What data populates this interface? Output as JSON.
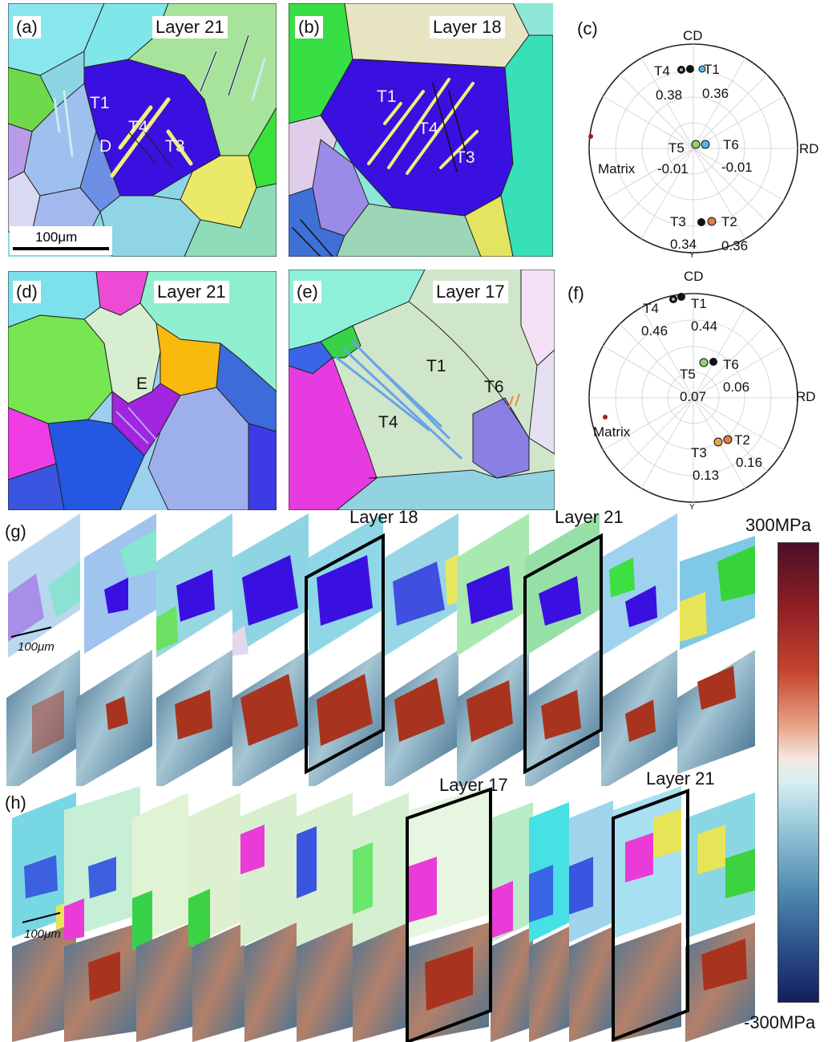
{
  "panels": {
    "a": {
      "tag": "(a)",
      "layer": "Layer 21",
      "labels": [
        "T1",
        "T4",
        "T3",
        "D"
      ],
      "scalebar": "100μm"
    },
    "b": {
      "tag": "(b)",
      "layer": "Layer 18",
      "labels": [
        "T1",
        "T4",
        "T3"
      ]
    },
    "c": {
      "tag": "(c)",
      "cd": "CD",
      "rd": "RD",
      "y": "Y",
      "matrix": "Matrix",
      "points": [
        {
          "name": "T4",
          "value": "0.38"
        },
        {
          "name": "T1",
          "value": "0.36"
        },
        {
          "name": "T5",
          "value": "-0.01"
        },
        {
          "name": "T6",
          "value": "-0.01"
        },
        {
          "name": "T3",
          "value": "0.34"
        },
        {
          "name": "T2",
          "value": "0.36"
        }
      ]
    },
    "d": {
      "tag": "(d)",
      "layer": "Layer 21",
      "labels": [
        "E"
      ]
    },
    "e": {
      "tag": "(e)",
      "layer": "Layer 17",
      "labels": [
        "T1",
        "T6",
        "T4"
      ]
    },
    "f": {
      "tag": "(f)",
      "cd": "CD",
      "rd": "RD",
      "y": "Y",
      "matrix": "Matrix",
      "points": [
        {
          "name": "T4",
          "value": "0.46"
        },
        {
          "name": "T1",
          "value": "0.44"
        },
        {
          "name": "T5",
          "value": "0.07"
        },
        {
          "name": "T6",
          "value": "0.06"
        },
        {
          "name": "T3",
          "value": "0.13"
        },
        {
          "name": "T2",
          "value": "0.16"
        }
      ]
    },
    "g": {
      "tag": "(g)",
      "highlight_1": "Layer 18",
      "highlight_2": "Layer 21",
      "scalebar": "100μm"
    },
    "h": {
      "tag": "(h)",
      "highlight_1": "Layer 17",
      "highlight_2": "Layer 21",
      "scalebar": "100μm"
    }
  },
  "colorbar": {
    "max": "300MPa",
    "min": "-300MPa"
  },
  "colors": {
    "grain_blue": "#3a10e0",
    "twin_yellow": "#f1ee7a",
    "stress_red": "#a8341f",
    "stress_blue": "#3f6e93",
    "pf_matrix": "#a02323"
  }
}
